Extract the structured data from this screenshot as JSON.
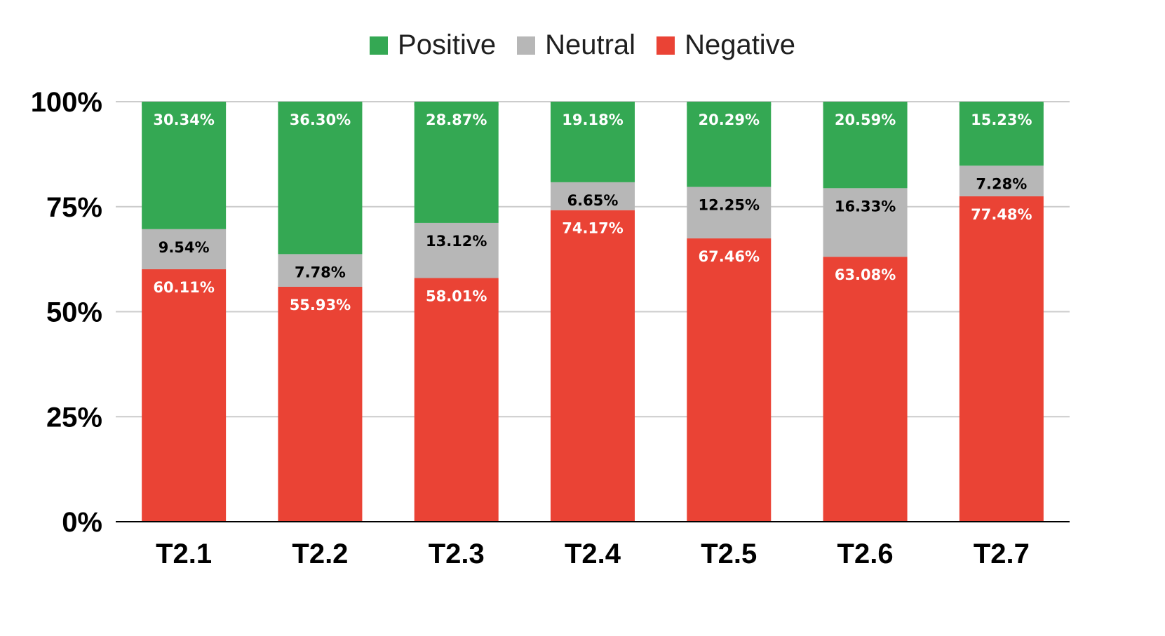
{
  "chart_data": {
    "type": "bar",
    "stacked": true,
    "categories": [
      "T2.1",
      "T2.2",
      "T2.3",
      "T2.4",
      "T2.5",
      "T2.6",
      "T2.7"
    ],
    "series": [
      {
        "name": "Negative",
        "color": "#ea4335",
        "label_color": "#ffffff",
        "values": [
          60.11,
          55.93,
          58.01,
          74.17,
          67.46,
          63.08,
          77.48
        ],
        "labels": [
          "60.11%",
          "55.93%",
          "58.01%",
          "74.17%",
          "67.46%",
          "63.08%",
          "77.48%"
        ]
      },
      {
        "name": "Neutral",
        "color": "#b7b7b7",
        "label_color": "#000000",
        "values": [
          9.54,
          7.78,
          13.12,
          6.65,
          12.25,
          16.33,
          7.28
        ],
        "labels": [
          "9.54%",
          "7.78%",
          "13.12%",
          "6.65%",
          "12.25%",
          "16.33%",
          "7.28%"
        ]
      },
      {
        "name": "Positive",
        "color": "#34a853",
        "label_color": "#ffffff",
        "values": [
          30.34,
          36.3,
          28.87,
          19.18,
          20.29,
          20.59,
          15.23
        ],
        "labels": [
          "30.34%",
          "36.30%",
          "28.87%",
          "19.18%",
          "20.29%",
          "20.59%",
          "15.23%"
        ]
      }
    ],
    "legend": {
      "position": "top-center",
      "items": [
        {
          "name": "Positive",
          "color": "#34a853"
        },
        {
          "name": "Neutral",
          "color": "#b7b7b7"
        },
        {
          "name": "Negative",
          "color": "#ea4335"
        }
      ]
    },
    "ylim": [
      0,
      100
    ],
    "yticks": [
      0,
      25,
      50,
      75,
      100
    ],
    "ytick_labels": [
      "0%",
      "25%",
      "50%",
      "75%",
      "100%"
    ],
    "grid": true,
    "title": "",
    "xlabel": "",
    "ylabel": ""
  }
}
